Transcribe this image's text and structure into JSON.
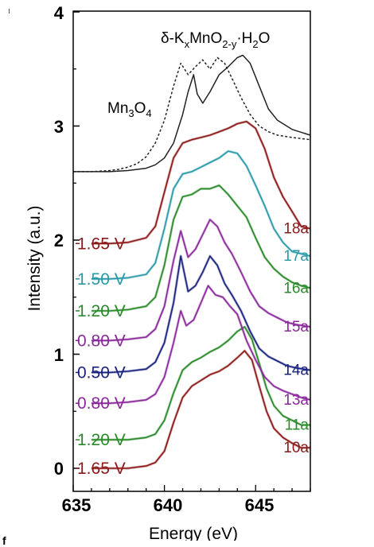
{
  "chart_data": {
    "type": "line",
    "xlabel": "Energy (eV)",
    "ylabel": "Intensity (a.u.)",
    "xlim": [
      635,
      648
    ],
    "ylim": [
      -0.2,
      4.0
    ],
    "x_ticks": [
      "635",
      "640",
      "645"
    ],
    "y_ticks": [
      "0",
      "1",
      "2",
      "3",
      "4"
    ],
    "grid": false,
    "annotations": [
      {
        "text": "Mn3O4",
        "x": 639.2,
        "y": 3.17
      },
      {
        "text": "δ-KxMnO2-y·H2O",
        "x": 644.1,
        "y": 3.81
      }
    ],
    "series": [
      {
        "name": "10a",
        "voltage": "1.65 V",
        "color": "#8b1a1a",
        "x": [
          636,
          637,
          638,
          639,
          639.5,
          640,
          640.5,
          641,
          641.5,
          642,
          642.5,
          643,
          643.5,
          644,
          644.4,
          644.8,
          645.2,
          645.6,
          646,
          646.5,
          647,
          647.5,
          648
        ],
        "y": [
          0.0,
          0.0,
          0.0,
          0.02,
          0.05,
          0.15,
          0.4,
          0.62,
          0.72,
          0.77,
          0.82,
          0.85,
          0.9,
          0.97,
          1.03,
          0.95,
          0.72,
          0.5,
          0.35,
          0.27,
          0.22,
          0.18,
          0.18
        ]
      },
      {
        "name": "11a",
        "voltage": "1.20 V",
        "color": "#2a8a2a",
        "x": [
          636,
          637,
          638,
          639,
          639.5,
          640,
          640.5,
          641,
          641.5,
          642,
          642.5,
          643,
          643.5,
          644,
          644.4,
          644.8,
          645.2,
          645.6,
          646,
          646.5,
          647,
          647.5,
          648
        ],
        "y": [
          0.25,
          0.25,
          0.25,
          0.27,
          0.3,
          0.42,
          0.66,
          0.86,
          0.93,
          0.97,
          1.02,
          1.06,
          1.12,
          1.2,
          1.24,
          1.13,
          0.92,
          0.7,
          0.55,
          0.46,
          0.42,
          0.38,
          0.38
        ]
      },
      {
        "name": "13a",
        "voltage": "0.80 V",
        "color": "#8a2a9a",
        "x": [
          636,
          637,
          638,
          639,
          639.5,
          640,
          640.5,
          640.9,
          641.2,
          641.6,
          642,
          642.4,
          642.8,
          643.2,
          643.6,
          644,
          644.5,
          645,
          645.5,
          646,
          646.5,
          647,
          647.5,
          648
        ],
        "y": [
          0.57,
          0.57,
          0.58,
          0.6,
          0.65,
          0.8,
          1.1,
          1.38,
          1.25,
          1.3,
          1.45,
          1.6,
          1.52,
          1.5,
          1.42,
          1.35,
          1.12,
          0.95,
          0.8,
          0.72,
          0.68,
          0.65,
          0.62,
          0.6
        ]
      },
      {
        "name": "14a",
        "voltage": "0.50 V",
        "color": "#1a237e",
        "x": [
          636,
          637,
          638,
          639,
          639.5,
          640,
          640.5,
          640.9,
          641.3,
          641.7,
          642.1,
          642.5,
          642.9,
          643.3,
          643.7,
          644.2,
          644.7,
          645.2,
          645.7,
          646.2,
          646.7,
          647.2,
          648
        ],
        "y": [
          0.84,
          0.84,
          0.85,
          0.87,
          0.93,
          1.1,
          1.45,
          1.86,
          1.55,
          1.6,
          1.72,
          1.86,
          1.78,
          1.62,
          1.52,
          1.38,
          1.2,
          1.05,
          0.98,
          0.94,
          0.9,
          0.88,
          0.86
        ]
      },
      {
        "name": "15a",
        "voltage": "0.80 V",
        "color": "#8a2a9a",
        "x": [
          636,
          637,
          638,
          639,
          639.5,
          640,
          640.5,
          640.9,
          641.3,
          641.7,
          642.1,
          642.5,
          642.9,
          643.3,
          643.7,
          644.2,
          644.7,
          645.2,
          645.7,
          646.2,
          646.7,
          647.2,
          648
        ],
        "y": [
          1.12,
          1.12,
          1.13,
          1.15,
          1.22,
          1.42,
          1.82,
          2.08,
          1.85,
          1.92,
          2.05,
          2.18,
          2.12,
          1.98,
          1.88,
          1.72,
          1.55,
          1.42,
          1.36,
          1.32,
          1.28,
          1.26,
          1.24
        ]
      },
      {
        "name": "16a",
        "voltage": "1.20 V",
        "color": "#2a8a2a",
        "x": [
          636,
          637,
          638,
          639,
          639.5,
          640,
          640.5,
          641,
          641.5,
          642,
          642.5,
          643,
          643.5,
          644,
          644.5,
          645,
          645.5,
          646,
          646.5,
          647,
          647.5,
          648
        ],
        "y": [
          1.38,
          1.38,
          1.39,
          1.42,
          1.5,
          1.78,
          2.18,
          2.38,
          2.4,
          2.45,
          2.45,
          2.48,
          2.4,
          2.3,
          2.2,
          2.02,
          1.85,
          1.75,
          1.68,
          1.63,
          1.6,
          1.58
        ]
      },
      {
        "name": "17a",
        "voltage": "1.50 V",
        "color": "#2a9aa8",
        "x": [
          636,
          637,
          638,
          639,
          639.5,
          640,
          640.5,
          641,
          641.5,
          642,
          642.5,
          643,
          643.5,
          644,
          644.5,
          645,
          645.5,
          646,
          646.5,
          647,
          647.5,
          648
        ],
        "y": [
          1.66,
          1.66,
          1.67,
          1.7,
          1.8,
          2.1,
          2.45,
          2.58,
          2.6,
          2.64,
          2.68,
          2.72,
          2.78,
          2.76,
          2.65,
          2.48,
          2.3,
          2.1,
          1.98,
          1.9,
          1.88,
          1.86
        ]
      },
      {
        "name": "18a",
        "voltage": "1.65 V",
        "color": "#8b1a1a",
        "x": [
          636,
          637,
          638,
          639,
          639.5,
          640,
          640.5,
          641,
          641.5,
          642,
          642.5,
          643,
          643.5,
          644,
          644.5,
          645,
          645.5,
          646,
          646.5,
          647,
          647.5,
          648
        ],
        "y": [
          1.97,
          1.97,
          1.98,
          2.02,
          2.12,
          2.42,
          2.72,
          2.85,
          2.88,
          2.9,
          2.92,
          2.95,
          2.98,
          3.02,
          3.04,
          2.98,
          2.8,
          2.55,
          2.38,
          2.25,
          2.12,
          2.1
        ]
      },
      {
        "name": "Mn3O4",
        "color": "#222222",
        "dash": true,
        "x": [
          635,
          636,
          637,
          637.5,
          638,
          638.5,
          639,
          639.5,
          640,
          640.5,
          640.9,
          641.3,
          641.7,
          642.1,
          642.5,
          642.9,
          643.3,
          643.7,
          644.2,
          644.7,
          645.2,
          645.7,
          646.2,
          647,
          648
        ],
        "y": [
          2.6,
          2.6,
          2.61,
          2.62,
          2.64,
          2.67,
          2.73,
          2.85,
          3.05,
          3.35,
          3.55,
          3.45,
          3.52,
          3.58,
          3.5,
          3.6,
          3.55,
          3.42,
          3.25,
          3.1,
          3.0,
          2.95,
          2.92,
          2.9,
          2.88
        ]
      },
      {
        "name": "δ-KxMnO2-y·H2O",
        "color": "#222222",
        "dash": false,
        "x": [
          635,
          636,
          637,
          638,
          639,
          639.5,
          640,
          640.5,
          641,
          641.3,
          641.6,
          641.8,
          642.1,
          642.5,
          643,
          643.5,
          644,
          644.3,
          644.7,
          645.2,
          645.7,
          646.2,
          647,
          648
        ],
        "y": [
          2.6,
          2.6,
          2.6,
          2.61,
          2.63,
          2.66,
          2.72,
          2.85,
          3.1,
          3.3,
          3.45,
          3.28,
          3.2,
          3.3,
          3.45,
          3.52,
          3.6,
          3.62,
          3.55,
          3.35,
          3.15,
          3.05,
          2.97,
          2.92
        ]
      }
    ],
    "legend": []
  },
  "stray_text": "f"
}
